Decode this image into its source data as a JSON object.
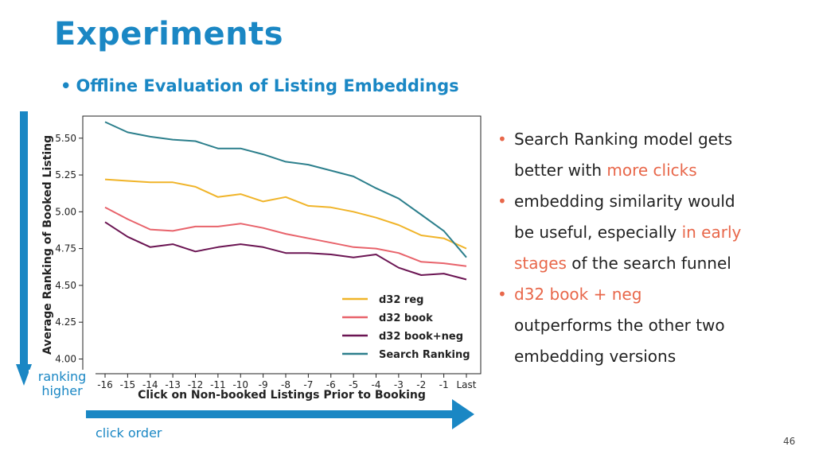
{
  "slide": {
    "title": "Experiments",
    "subtitle": "Offline Evaluation of Listing Embeddings",
    "bullet_glyph": "•",
    "page_number": "46"
  },
  "bullets": [
    {
      "lines": [
        [
          {
            "t": "Search Ranking model gets"
          }
        ],
        [
          {
            "t": "better with "
          },
          {
            "t": "more clicks",
            "hl": true
          }
        ]
      ]
    },
    {
      "lines": [
        [
          {
            "t": "embedding similarity would"
          }
        ],
        [
          {
            "t": "be useful, especially "
          },
          {
            "t": "in early",
            "hl": true
          }
        ],
        [
          {
            "t": "stages",
            "hl": true
          },
          {
            "t": " of the search funnel"
          }
        ]
      ]
    },
    {
      "lines": [
        [
          {
            "t": "d32 book + neg",
            "hl": true
          }
        ],
        [
          {
            "t": "outperforms the other two"
          }
        ],
        [
          {
            "t": "embedding versions"
          }
        ]
      ]
    }
  ],
  "annotations": {
    "ranking_label_line1": "ranking",
    "ranking_label_line2": "higher",
    "click_label": "click order"
  },
  "colors": {
    "title": "#1a87c4",
    "accent_arrow": "#1a87c4",
    "highlight": "#e8674a",
    "d32_reg": "#f0b429",
    "d32_book": "#e8636b",
    "d32_book_neg": "#6b1553",
    "search_ranking": "#2c7f8c"
  },
  "chart_data": {
    "type": "line",
    "xlabel": "Click on Non-booked Listings Prior to Booking",
    "ylabel": "Average Ranking of Booked Listing",
    "categories": [
      "-16",
      "-15",
      "-14",
      "-13",
      "-12",
      "-11",
      "-10",
      "-9",
      "-8",
      "-7",
      "-6",
      "-5",
      "-4",
      "-3",
      "-2",
      "-1",
      "Last"
    ],
    "yticks": [
      "4.00",
      "4.25",
      "4.50",
      "4.75",
      "5.00",
      "5.25",
      "5.50"
    ],
    "ylim": [
      3.9,
      5.65
    ],
    "grid": false,
    "legend_position": "bottom-right",
    "series": [
      {
        "name": "d32 reg",
        "color": "#f0b429",
        "values": [
          5.22,
          5.21,
          5.2,
          5.2,
          5.17,
          5.1,
          5.12,
          5.07,
          5.1,
          5.04,
          5.03,
          5.0,
          4.96,
          4.91,
          4.84,
          4.82,
          4.75
        ]
      },
      {
        "name": "d32 book",
        "color": "#e8636b",
        "values": [
          5.03,
          4.95,
          4.88,
          4.87,
          4.9,
          4.9,
          4.92,
          4.89,
          4.85,
          4.82,
          4.79,
          4.76,
          4.75,
          4.72,
          4.66,
          4.65,
          4.63
        ]
      },
      {
        "name": "d32 book+neg",
        "color": "#6b1553",
        "values": [
          4.93,
          4.83,
          4.76,
          4.78,
          4.73,
          4.76,
          4.78,
          4.76,
          4.72,
          4.72,
          4.71,
          4.69,
          4.71,
          4.62,
          4.57,
          4.58,
          4.54
        ]
      },
      {
        "name": "Search Ranking",
        "color": "#2c7f8c",
        "values": [
          5.61,
          5.54,
          5.51,
          5.49,
          5.48,
          5.43,
          5.43,
          5.39,
          5.34,
          5.32,
          5.28,
          5.24,
          5.16,
          5.09,
          4.98,
          4.87,
          4.69
        ]
      }
    ]
  }
}
